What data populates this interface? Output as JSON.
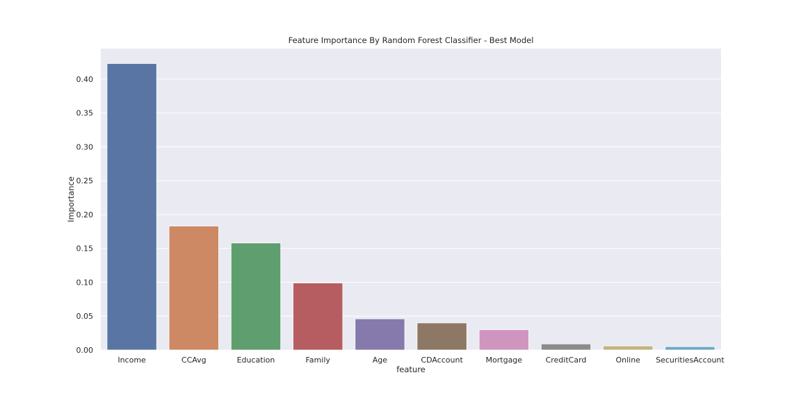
{
  "chart_data": {
    "type": "bar",
    "title": "Feature Importance By Random Forest Classifier - Best Model",
    "xlabel": "feature",
    "ylabel": "Importance",
    "categories": [
      "Income",
      "CCAvg",
      "Education",
      "Family",
      "Age",
      "CDAccount",
      "Mortgage",
      "CreditCard",
      "Online",
      "SecuritiesAccount"
    ],
    "values": [
      0.423,
      0.183,
      0.158,
      0.099,
      0.046,
      0.04,
      0.03,
      0.009,
      0.006,
      0.005
    ],
    "colors": [
      "#5975a4",
      "#cc8963",
      "#5f9e6e",
      "#b55d60",
      "#857aab",
      "#8d7866",
      "#d095bf",
      "#8c8c8c",
      "#c1b37f",
      "#6fa8c6"
    ],
    "ylim": [
      0,
      0.445
    ],
    "yticks": [
      "0.00",
      "0.05",
      "0.10",
      "0.15",
      "0.20",
      "0.25",
      "0.30",
      "0.35",
      "0.40"
    ],
    "grid": true,
    "background": "#eaeaf2"
  }
}
